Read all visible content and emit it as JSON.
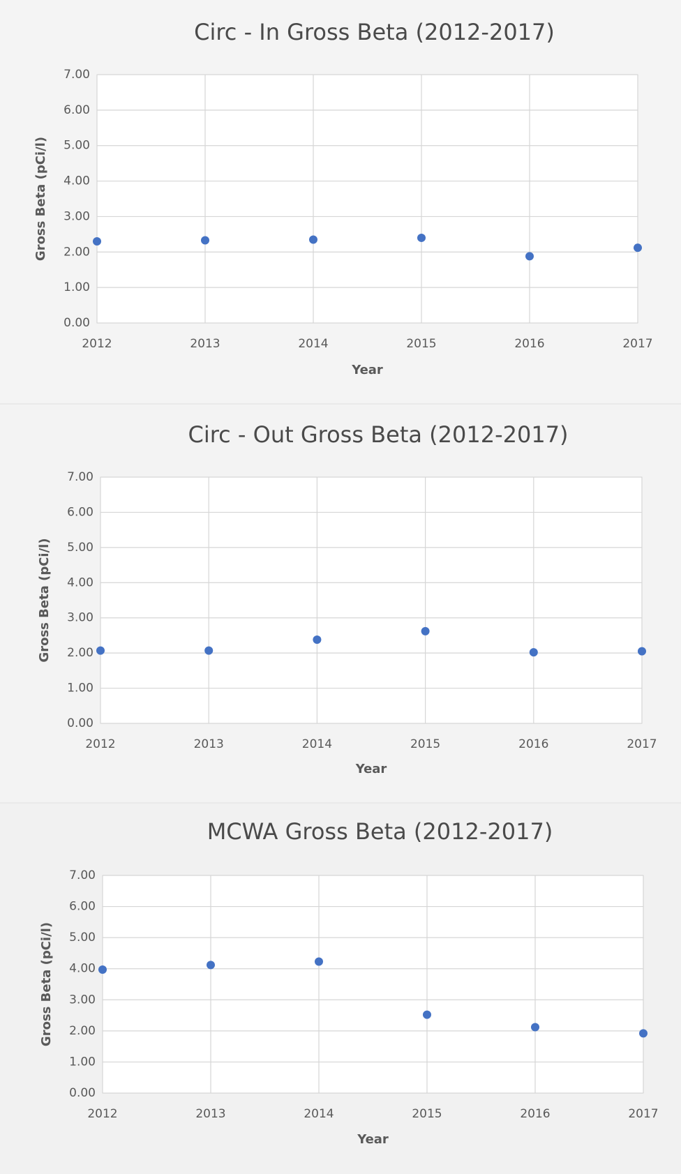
{
  "chart_data": [
    {
      "type": "scatter",
      "title": "Circ - In Gross Beta (2012-2017)",
      "x_label": "Year",
      "y_label": "Gross Beta (pCi/l)",
      "x": [
        2012,
        2013,
        2014,
        2015,
        2016,
        2017
      ],
      "values": [
        2.3,
        2.33,
        2.35,
        2.4,
        1.88,
        2.12
      ],
      "color": "#4472c4",
      "xlim": [
        2012,
        2017
      ],
      "ylim": [
        0,
        7
      ],
      "xticks": [
        2012,
        2013,
        2014,
        2015,
        2016,
        2017
      ],
      "yticks": [
        {
          "value": 0,
          "label": "0.00"
        },
        {
          "value": 1,
          "label": "1.00"
        },
        {
          "value": 2,
          "label": "2.00"
        },
        {
          "value": 3,
          "label": "3.00"
        },
        {
          "value": 4,
          "label": "4.00"
        },
        {
          "value": 5,
          "label": "5.00"
        },
        {
          "value": 6,
          "label": "6.00"
        },
        {
          "value": 7,
          "label": "7.00"
        }
      ],
      "grid": true
    },
    {
      "type": "scatter",
      "title": "Circ - Out Gross Beta (2012-2017)",
      "x_label": "Year",
      "y_label": "Gross Beta (pCi/l)",
      "x": [
        2012,
        2013,
        2014,
        2015,
        2016,
        2017
      ],
      "values": [
        2.07,
        2.07,
        2.38,
        2.62,
        2.02,
        2.05
      ],
      "color": "#4472c4",
      "xlim": [
        2012,
        2017
      ],
      "ylim": [
        0,
        7
      ],
      "xticks": [
        2012,
        2013,
        2014,
        2015,
        2016,
        2017
      ],
      "yticks": [
        {
          "value": 0,
          "label": "0.00"
        },
        {
          "value": 1,
          "label": "1.00"
        },
        {
          "value": 2,
          "label": "2.00"
        },
        {
          "value": 3,
          "label": "3.00"
        },
        {
          "value": 4,
          "label": "4.00"
        },
        {
          "value": 5,
          "label": "5.00"
        },
        {
          "value": 6,
          "label": "6.00"
        },
        {
          "value": 7,
          "label": "7.00"
        }
      ],
      "grid": true
    },
    {
      "type": "scatter",
      "title": "MCWA Gross Beta (2012-2017)",
      "x_label": "Year",
      "y_label": "Gross Beta (pCi/l)",
      "x": [
        2012,
        2013,
        2014,
        2015,
        2016,
        2017
      ],
      "values": [
        3.97,
        4.12,
        4.23,
        2.52,
        2.12,
        1.92
      ],
      "color": "#4472c4",
      "xlim": [
        2012,
        2017
      ],
      "ylim": [
        0,
        7
      ],
      "xticks": [
        2012,
        2013,
        2014,
        2015,
        2016,
        2017
      ],
      "yticks": [
        {
          "value": 0,
          "label": "0.00"
        },
        {
          "value": 1,
          "label": "1.00"
        },
        {
          "value": 2,
          "label": "2.00"
        },
        {
          "value": 3,
          "label": "3.00"
        },
        {
          "value": 4,
          "label": "4.00"
        },
        {
          "value": 5,
          "label": "5.00"
        },
        {
          "value": 6,
          "label": "6.00"
        },
        {
          "value": 7,
          "label": "7.00"
        }
      ],
      "grid": true
    }
  ]
}
